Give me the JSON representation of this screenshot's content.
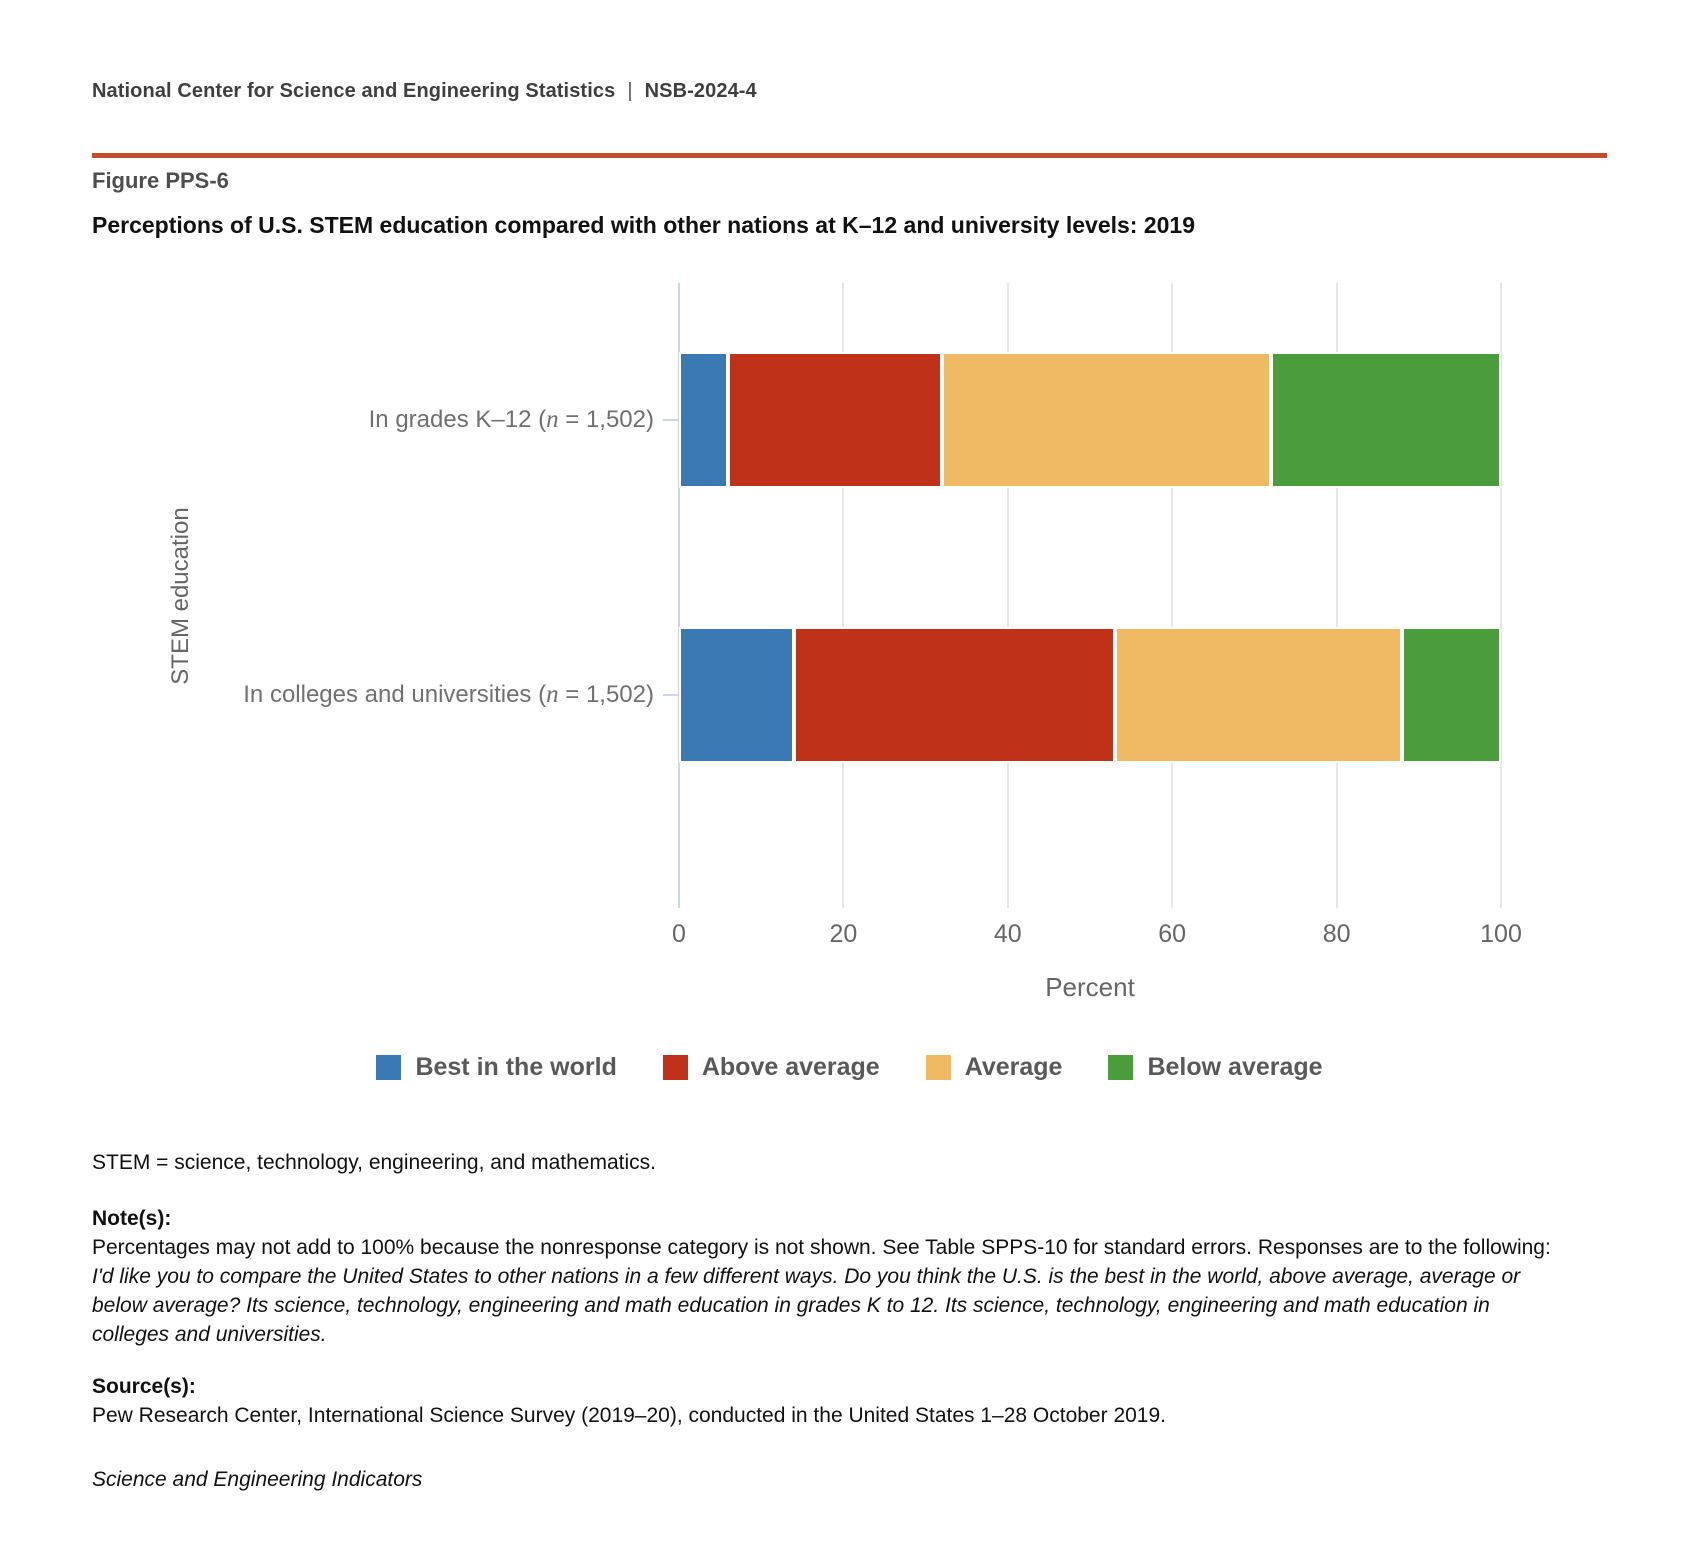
{
  "header": {
    "org": "National Center for Science and Engineering Statistics",
    "separator": "|",
    "report_id": "NSB-2024-4"
  },
  "figure": {
    "label": "Figure PPS-6",
    "title": "Perceptions of U.S. STEM education compared with other nations at K–12 and university levels: 2019"
  },
  "chart_data": {
    "type": "bar",
    "orientation": "horizontal",
    "stacked": true,
    "categories": [
      {
        "plain": "In grades K–12 (n = 1,502)",
        "prefix": "In grades K–12 (",
        "n": "n",
        "suffix": " = 1,502)"
      },
      {
        "plain": "In colleges and universities (n = 1,502)",
        "prefix": "In colleges and universities (",
        "n": "n",
        "suffix": " = 1,502)"
      }
    ],
    "series": [
      {
        "name": "Best in the world",
        "color": "#3a79b4",
        "values": [
          6,
          14
        ]
      },
      {
        "name": "Above average",
        "color": "#bf3119",
        "values": [
          26,
          39
        ]
      },
      {
        "name": "Average",
        "color": "#efba63",
        "values": [
          40,
          35
        ]
      },
      {
        "name": "Below average",
        "color": "#4a9d3a",
        "values": [
          28,
          12
        ]
      }
    ],
    "xlabel": "Percent",
    "ylabel": "STEM education",
    "x_ticks": [
      0,
      20,
      40,
      60,
      80,
      100
    ],
    "xlim": [
      0,
      100
    ],
    "grid": true,
    "legend_position": "bottom"
  },
  "footer": {
    "stem_definition": "STEM = science, technology, engineering, and mathematics.",
    "notes_heading": "Note(s):",
    "note_plain": "Percentages may not add to 100% because the nonresponse category is not shown. See Table SPPS-10 for standard errors. Responses are to the following: ",
    "note_italic": "I'd like you to compare the United States to other nations in a few different ways. Do you think the U.S. is the best in the world, above average, average or below average? Its science, technology, engineering and math education in grades K to 12. Its science, technology, engineering and math education in colleges and universities.",
    "source_heading": "Source(s):",
    "source_text": "Pew Research Center, International Science Survey (2019–20), conducted in the United States 1–28 October 2019.",
    "publication": "Science and Engineering Indicators"
  },
  "theme": {
    "accent_rule": "#c64a2e",
    "gridline": "#e6e6e6",
    "axis_line": "#ccd6eb",
    "axis_text": "#666666",
    "legend_text": "#595959"
  }
}
